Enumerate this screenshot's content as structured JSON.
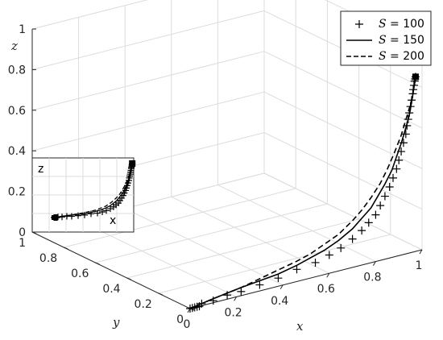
{
  "chart_data": {
    "type": "line3d",
    "xlabel": "x",
    "ylabel": "y",
    "zlabel": "z",
    "xlim": [
      0,
      1
    ],
    "ylim": [
      0,
      1
    ],
    "zlim": [
      0,
      1
    ],
    "xticks": [
      "0",
      "0.2",
      "0.4",
      "0.6",
      "0.8",
      "1"
    ],
    "yticks": [
      "0",
      "0.2",
      "0.4",
      "0.6",
      "0.8",
      "1"
    ],
    "zticks": [
      "0",
      "0.2",
      "0.4",
      "0.6",
      "0.8",
      "1"
    ],
    "grid": true,
    "legend": {
      "position": "top-right",
      "entries": [
        {
          "sym": "S",
          "text": " = 100",
          "style": "plus-markers"
        },
        {
          "sym": "S",
          "text": " = 150",
          "style": "solid"
        },
        {
          "sym": "S",
          "text": " = 200",
          "style": "dashed"
        }
      ]
    },
    "series": [
      {
        "legend_index": 0,
        "style": "plus-markers",
        "x": [
          0.0,
          0.01,
          0.02,
          0.03,
          0.04,
          0.05,
          0.1,
          0.16,
          0.22,
          0.3,
          0.38,
          0.46,
          0.54,
          0.6,
          0.65,
          0.7,
          0.74,
          0.77,
          0.8,
          0.82,
          0.84,
          0.86,
          0.875,
          0.89,
          0.9,
          0.91,
          0.92,
          0.93,
          0.935,
          0.94,
          0.945,
          0.95,
          0.955,
          0.96,
          0.962,
          0.965,
          0.968,
          0.97,
          0.972
        ],
        "z": [
          0.0,
          0.0,
          0.0,
          0.0,
          0.0,
          0.01,
          0.01,
          0.02,
          0.02,
          0.03,
          0.04,
          0.06,
          0.07,
          0.09,
          0.11,
          0.14,
          0.17,
          0.2,
          0.23,
          0.27,
          0.31,
          0.35,
          0.39,
          0.43,
          0.47,
          0.51,
          0.55,
          0.59,
          0.63,
          0.66,
          0.69,
          0.72,
          0.75,
          0.78,
          0.8,
          0.82,
          0.84,
          0.85,
          0.86
        ]
      },
      {
        "legend_index": 1,
        "style": "solid",
        "x": [
          0.0,
          0.05,
          0.1,
          0.16,
          0.22,
          0.3,
          0.38,
          0.46,
          0.52,
          0.58,
          0.64,
          0.7,
          0.74,
          0.78,
          0.81,
          0.84,
          0.87,
          0.89,
          0.91,
          0.93,
          0.945,
          0.955,
          0.962,
          0.968,
          0.972
        ],
        "z": [
          0.0,
          0.01,
          0.02,
          0.03,
          0.04,
          0.05,
          0.06,
          0.08,
          0.1,
          0.12,
          0.15,
          0.19,
          0.23,
          0.27,
          0.32,
          0.37,
          0.43,
          0.49,
          0.55,
          0.62,
          0.68,
          0.74,
          0.79,
          0.83,
          0.86
        ]
      },
      {
        "legend_index": 2,
        "style": "dashed",
        "x": [
          0.0,
          0.05,
          0.1,
          0.16,
          0.22,
          0.3,
          0.38,
          0.46,
          0.52,
          0.58,
          0.64,
          0.7,
          0.74,
          0.78,
          0.82,
          0.85,
          0.88,
          0.91,
          0.93,
          0.95,
          0.96,
          0.967,
          0.972
        ],
        "z": [
          0.0,
          0.01,
          0.02,
          0.03,
          0.04,
          0.06,
          0.08,
          0.1,
          0.12,
          0.15,
          0.18,
          0.23,
          0.27,
          0.32,
          0.38,
          0.44,
          0.51,
          0.59,
          0.66,
          0.73,
          0.78,
          0.83,
          0.86
        ]
      }
    ],
    "inset": {
      "labels": [
        "z",
        "x"
      ]
    }
  }
}
